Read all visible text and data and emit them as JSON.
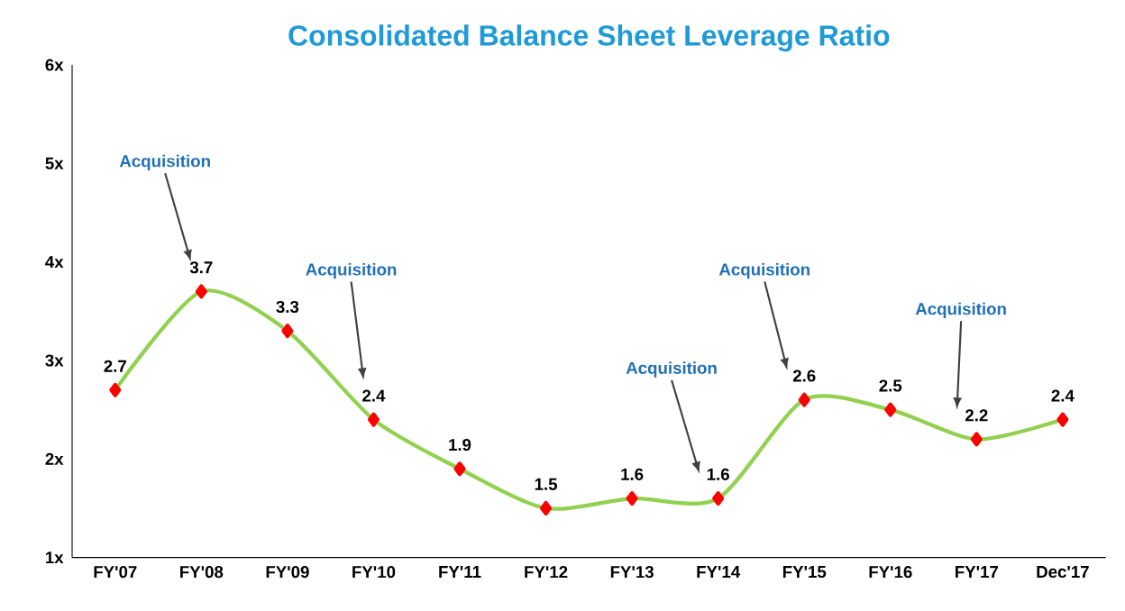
{
  "chart_data": {
    "type": "line",
    "title": "Consolidated Balance Sheet Leverage Ratio",
    "categories": [
      "FY'07",
      "FY'08",
      "FY'09",
      "FY'10",
      "FY'11",
      "FY'12",
      "FY'13",
      "FY'14",
      "FY'15",
      "FY'16",
      "FY'17",
      "Dec'17"
    ],
    "series": [
      {
        "color": "#92d050",
        "values": [
          2.7,
          3.7,
          3.3,
          2.4,
          1.9,
          1.5,
          1.6,
          1.6,
          2.6,
          2.5,
          2.2,
          2.4
        ]
      }
    ],
    "ylim": [
      1,
      6
    ],
    "yticks": [
      {
        "value": 1,
        "label": "1x"
      },
      {
        "value": 2,
        "label": "2x"
      },
      {
        "value": 3,
        "label": "3x"
      },
      {
        "value": 4,
        "label": "4x"
      },
      {
        "value": 5,
        "label": "5x"
      },
      {
        "value": 6,
        "label": "6x"
      }
    ],
    "data_labels": true,
    "marker": "diamond",
    "grid": false,
    "annotations": [
      "Acquisition",
      "Acquisition",
      "Acquisition",
      "Acquisition",
      "Acquisition"
    ]
  }
}
